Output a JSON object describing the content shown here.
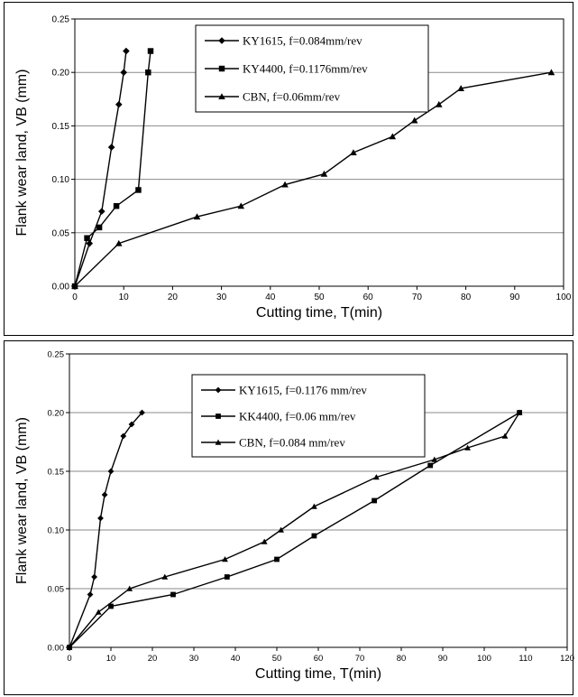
{
  "chart_data": [
    {
      "type": "line",
      "title": "",
      "xlabel": "Cutting time, T(min)",
      "ylabel": "Flank wear land, VB (mm)",
      "xlim": [
        0,
        100
      ],
      "ylim": [
        0,
        0.25
      ],
      "xticks": [
        "0",
        "10",
        "20",
        "30",
        "40",
        "50",
        "60",
        "70",
        "80",
        "90",
        "100"
      ],
      "yticks": [
        "0.00",
        "0.05",
        "0.10",
        "0.15",
        "0.20",
        "0.25"
      ],
      "grid": "horizontal",
      "legend_position": "top-center",
      "series": [
        {
          "name": "KY1615, f=0.084mm/rev",
          "marker": "diamond",
          "x": [
            0,
            3,
            5.5,
            7.5,
            9,
            10,
            10.5
          ],
          "y": [
            0,
            0.04,
            0.07,
            0.13,
            0.17,
            0.2,
            0.22
          ]
        },
        {
          "name": "KY4400, f=0.1176mm/rev",
          "marker": "square",
          "x": [
            0,
            2.5,
            5,
            8.5,
            13,
            15,
            15.5
          ],
          "y": [
            0,
            0.045,
            0.055,
            0.075,
            0.09,
            0.2,
            0.22
          ]
        },
        {
          "name": "CBN, f=0.06mm/rev",
          "marker": "triangle",
          "x": [
            0,
            9,
            25,
            34,
            43,
            51,
            57,
            65,
            69.5,
            74.5,
            79,
            97.5
          ],
          "y": [
            0,
            0.04,
            0.065,
            0.075,
            0.095,
            0.105,
            0.125,
            0.14,
            0.155,
            0.17,
            0.185,
            0.2
          ]
        }
      ]
    },
    {
      "type": "line",
      "title": "",
      "xlabel": "Cutting time, T(min)",
      "ylabel": "Flank wear land, VB (mm)",
      "xlim": [
        0,
        120
      ],
      "ylim": [
        0,
        0.25
      ],
      "xticks": [
        "0",
        "10",
        "20",
        "30",
        "40",
        "50",
        "60",
        "70",
        "80",
        "90",
        "100",
        "110",
        "120"
      ],
      "yticks": [
        "0.00",
        "0.05",
        "0.10",
        "0.15",
        "0.20",
        "0.25"
      ],
      "grid": "horizontal",
      "legend_position": "top-center",
      "series": [
        {
          "name": "KY1615, f=0.1176 mm/rev",
          "marker": "diamond",
          "x": [
            0,
            5,
            6,
            7.5,
            8.5,
            10,
            13,
            15,
            17.5
          ],
          "y": [
            0,
            0.045,
            0.06,
            0.11,
            0.13,
            0.15,
            0.18,
            0.19,
            0.2
          ]
        },
        {
          "name": "KK4400, f=0.06 mm/rev",
          "marker": "square",
          "x": [
            0,
            10,
            25,
            38,
            50,
            59,
            73.5,
            87,
            108.5
          ],
          "y": [
            0,
            0.035,
            0.045,
            0.06,
            0.075,
            0.095,
            0.125,
            0.155,
            0.2
          ]
        },
        {
          "name": "CBN, f=0.084 mm/rev",
          "marker": "triangle",
          "x": [
            0,
            7,
            14.5,
            23,
            37.5,
            47,
            51,
            59,
            74,
            88,
            96,
            105,
            108.5
          ],
          "y": [
            0,
            0.03,
            0.05,
            0.06,
            0.075,
            0.09,
            0.1,
            0.12,
            0.145,
            0.16,
            0.17,
            0.18,
            0.2
          ]
        }
      ]
    }
  ]
}
